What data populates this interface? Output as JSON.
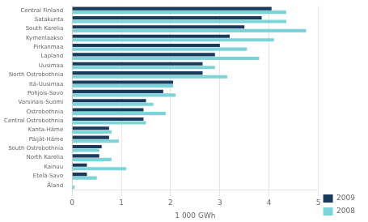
{
  "chart_data": {
    "type": "bar",
    "orientation": "horizontal",
    "categories": [
      "Central Finland",
      "Satakunta",
      "South Karelia",
      "Kymenlaakso",
      "Pirkanmaa",
      "Lapland",
      "Uusimaa",
      "North Ostrobothnia",
      "Itä-Uusimaa",
      "Pohjois-Savo",
      "Varsinais-Suomi",
      "Ostrobothnia",
      "Central Ostrobothnia",
      "Kanta-Häme",
      "Päijät-Häme",
      "South Ostrobothnia",
      "North Karelia",
      "Kainuu",
      "Etelä-Savo",
      "Åland"
    ],
    "series": [
      {
        "name": "2009",
        "color": "#1a3a5c",
        "values": [
          4.05,
          3.85,
          3.5,
          3.2,
          3.0,
          2.9,
          2.65,
          2.65,
          2.05,
          1.85,
          1.5,
          1.45,
          1.45,
          0.75,
          0.75,
          0.6,
          0.55,
          0.3,
          0.3,
          0.0
        ]
      },
      {
        "name": "2008",
        "color": "#7dd4d8",
        "values": [
          4.35,
          4.35,
          4.75,
          4.1,
          3.55,
          3.8,
          2.9,
          3.15,
          2.05,
          2.1,
          1.65,
          1.9,
          1.5,
          0.8,
          0.95,
          0.55,
          0.8,
          1.1,
          0.5,
          0.05
        ]
      }
    ],
    "xlabel": "1 000 GWh",
    "xlim": [
      0,
      5
    ],
    "xticks": [
      0,
      1,
      2,
      3,
      4,
      5
    ],
    "grid": true,
    "legend": "lower right"
  }
}
